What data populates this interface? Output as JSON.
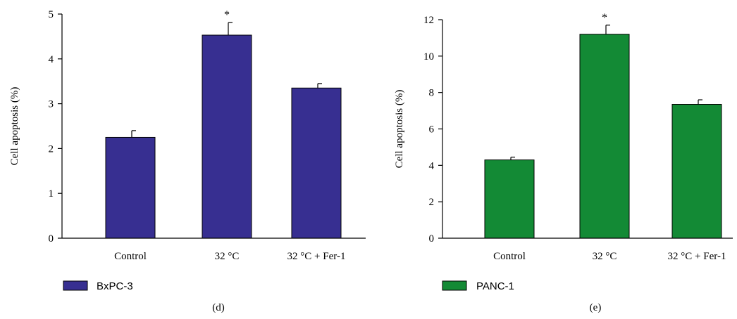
{
  "chart_data": [
    {
      "type": "bar",
      "panel_label": "(d)",
      "ylabel": "Cell apoptosis (%)",
      "ylim": [
        0,
        5
      ],
      "yticks": [
        0,
        1,
        2,
        3,
        4,
        5
      ],
      "categories": [
        "Control",
        "32 °C",
        "32 °C + Fer-1"
      ],
      "series": [
        {
          "name": "BxPC-3",
          "color": "#372f91",
          "values": [
            2.25,
            4.53,
            3.35
          ],
          "errors": [
            0.15,
            0.28,
            0.1
          ],
          "significance": [
            "",
            "*",
            ""
          ]
        }
      ],
      "legend": {
        "position": "bottom-left"
      }
    },
    {
      "type": "bar",
      "panel_label": "(e)",
      "ylabel": "Cell apoptosis (%)",
      "ylim": [
        0,
        12
      ],
      "yticks": [
        0,
        2,
        4,
        6,
        8,
        10,
        12
      ],
      "categories": [
        "Control",
        "32 °C",
        "32 °C + Fer-1"
      ],
      "series": [
        {
          "name": "PANC-1",
          "color": "#138a35",
          "values": [
            4.3,
            11.2,
            7.35
          ],
          "errors": [
            0.15,
            0.5,
            0.25
          ],
          "significance": [
            "",
            "*",
            ""
          ]
        }
      ],
      "legend": {
        "position": "bottom-left"
      }
    }
  ]
}
